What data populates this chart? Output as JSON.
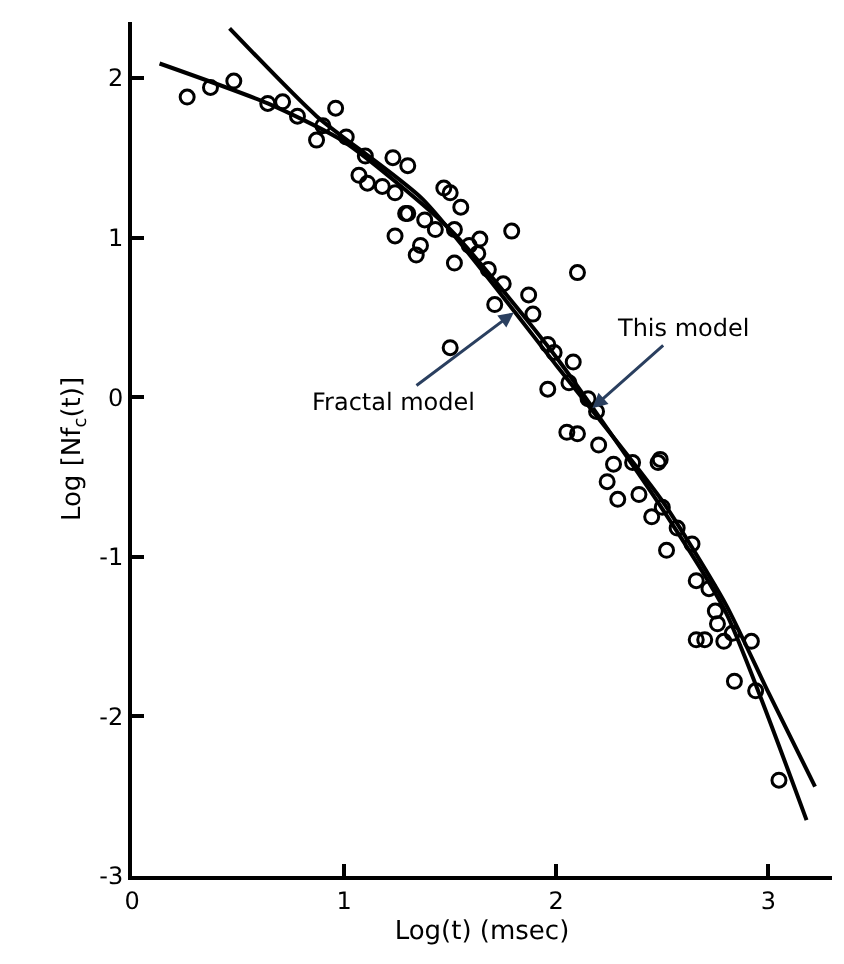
{
  "chart_data": {
    "type": "scatter",
    "xlabel": "Log(t) (msec)",
    "ylabel": "Log [Nf$_{c}$(t)]",
    "xlim": [
      0,
      3.3
    ],
    "xticks": [
      0,
      1,
      2,
      3
    ],
    "ylim": [
      -3,
      2.35
    ],
    "yticks": [
      -3,
      -2,
      -1,
      0,
      1,
      2
    ],
    "marker": "circle",
    "series": [
      {
        "color": "#000000",
        "x": [
          0.26,
          0.37,
          0.48,
          0.64,
          0.71,
          0.78,
          0.96,
          0.87,
          0.9,
          1.01,
          1.1,
          1.23,
          1.3,
          1.07,
          1.11,
          1.18,
          1.24,
          1.3,
          1.24,
          1.34,
          1.36,
          1.38,
          1.47,
          1.5,
          1.55,
          1.29,
          1.43,
          1.52,
          1.64,
          1.59,
          1.63,
          1.52,
          1.68,
          1.79,
          2.1,
          1.75,
          1.87,
          1.71,
          1.89,
          1.5,
          1.96,
          1.99,
          2.08,
          1.96,
          2.06,
          2.15,
          2.19,
          2.05,
          2.1,
          2.2,
          2.49,
          2.27,
          2.36,
          2.24,
          2.29,
          2.48,
          2.39,
          2.5,
          2.45,
          2.57,
          2.64,
          2.52,
          2.66,
          2.72,
          2.75,
          2.76,
          2.66,
          2.7,
          2.83,
          2.92,
          2.79,
          2.84,
          2.94,
          3.05
        ],
        "values": [
          1.88,
          1.94,
          1.98,
          1.84,
          1.85,
          1.76,
          1.81,
          1.61,
          1.7,
          1.63,
          1.51,
          1.5,
          1.45,
          1.39,
          1.34,
          1.32,
          1.28,
          1.15,
          1.01,
          0.89,
          0.95,
          1.11,
          1.31,
          1.28,
          1.19,
          1.15,
          1.05,
          1.05,
          0.99,
          0.95,
          0.9,
          0.84,
          0.8,
          1.04,
          0.78,
          0.71,
          0.64,
          0.58,
          0.52,
          0.31,
          0.33,
          0.28,
          0.22,
          0.05,
          0.09,
          -0.01,
          -0.09,
          -0.22,
          -0.23,
          -0.3,
          -0.39,
          -0.42,
          -0.41,
          -0.53,
          -0.64,
          -0.41,
          -0.61,
          -0.69,
          -0.75,
          -0.82,
          -0.92,
          -0.96,
          -1.15,
          -1.2,
          -1.34,
          -1.42,
          -1.52,
          -1.52,
          -1.48,
          -1.53,
          -1.53,
          -1.78,
          -1.84,
          -2.4
        ]
      },
      {
        "type": "line",
        "color": "#000000",
        "marker": "none",
        "x": [
          0.13,
          0.64,
          1.0,
          1.5,
          2.0,
          2.5,
          2.8,
          3.18
        ],
        "values": [
          2.09,
          1.84,
          1.6,
          1.05,
          0.25,
          -0.7,
          -1.35,
          -2.65
        ]
      },
      {
        "type": "line",
        "color": "#000000",
        "marker": "none",
        "x": [
          0.46,
          0.87,
          1.37,
          2.0,
          2.5,
          2.8,
          3.0,
          3.22
        ],
        "values": [
          2.31,
          1.76,
          1.24,
          0.2,
          -0.65,
          -1.3,
          -1.85,
          -2.44
        ]
      }
    ],
    "annotations": [
      {
        "text": "This model",
        "x": 2.17,
        "y": -0.07
      },
      {
        "text": "Fractal model",
        "x": 1.8,
        "y": 0.53
      }
    ]
  }
}
